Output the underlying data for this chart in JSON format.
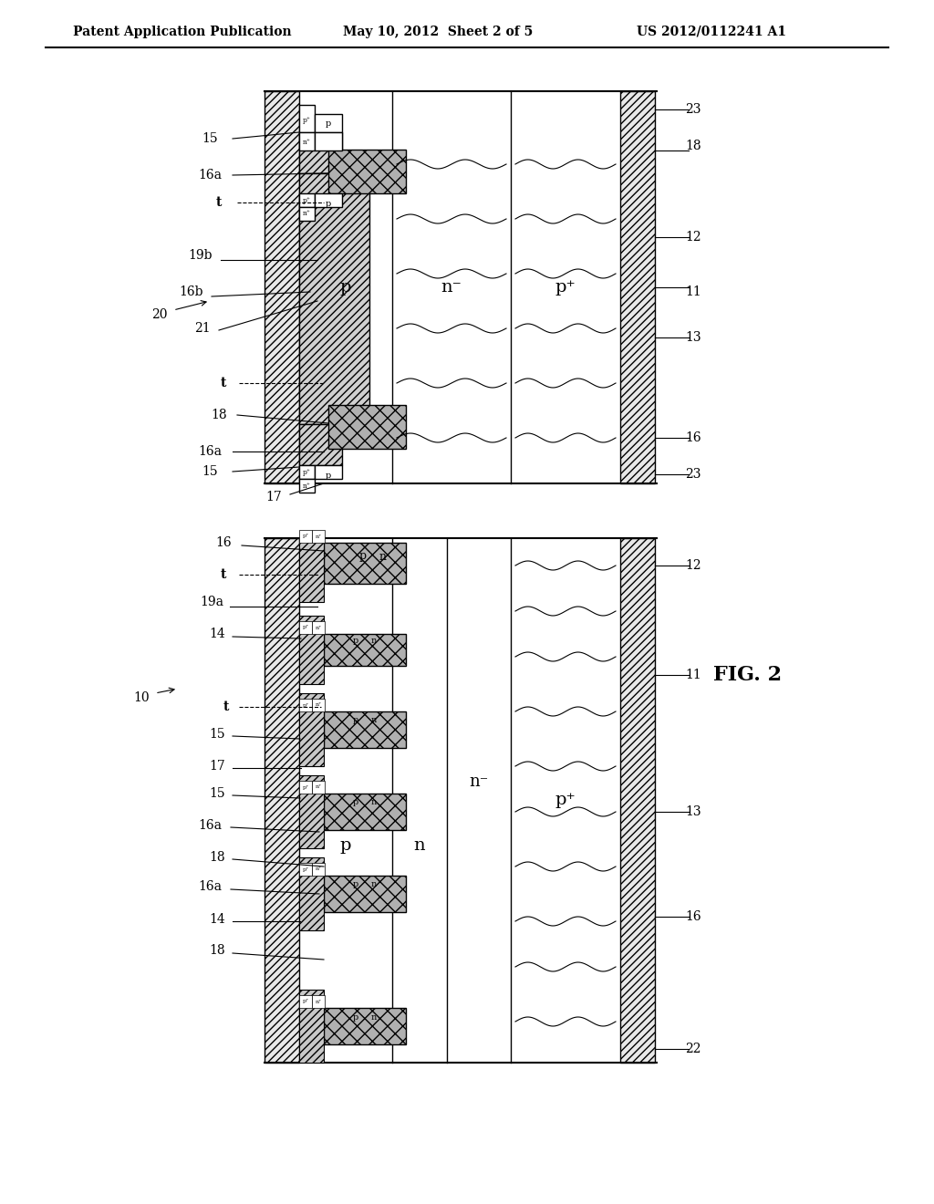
{
  "title": "",
  "header_left": "Patent Application Publication",
  "header_center": "May 10, 2012  Sheet 2 of 5",
  "header_right": "US 2012/0112241 A1",
  "fig_label": "FIG. 2",
  "background_color": "#ffffff"
}
